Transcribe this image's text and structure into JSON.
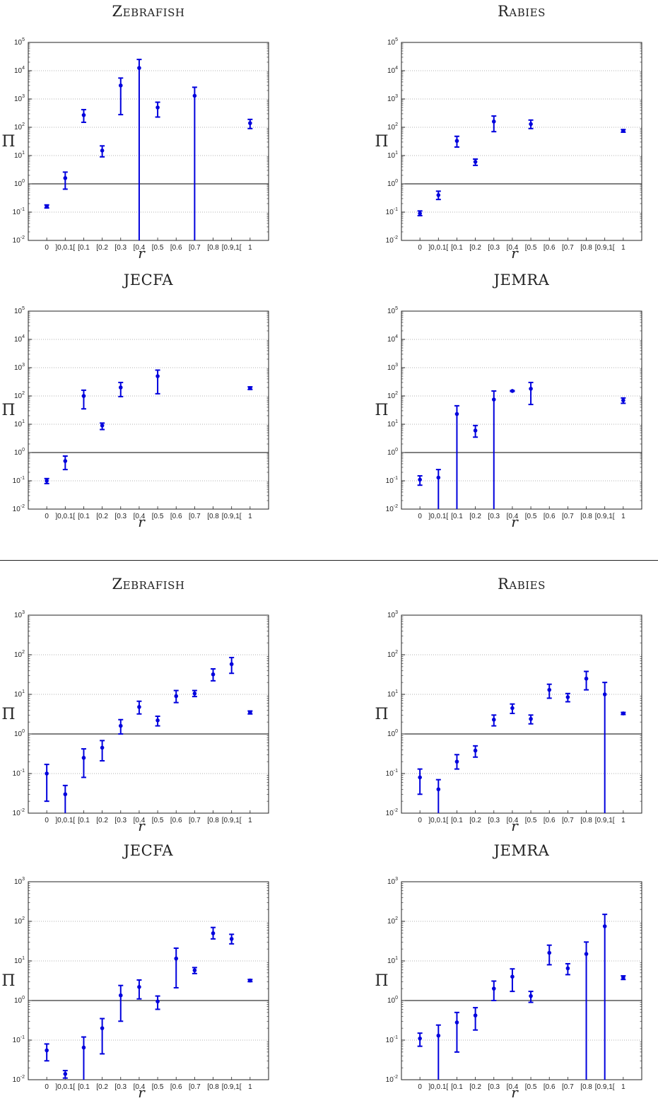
{
  "charts": {
    "top": {
      "ylim_exp": [
        -2,
        5
      ],
      "panels": [
        {
          "title": "Zebrafish",
          "smallcaps": true,
          "ylabel": "Π",
          "xlabel": "r",
          "categories": [
            "0",
            "]0,0.1[",
            "[0.1",
            "[0.2",
            "[0.3",
            "[0.4",
            "[0.5",
            "[0.6",
            "[0.7",
            "[0.8",
            "[0.9,1[",
            "1"
          ],
          "points": [
            {
              "i": 0,
              "y": 0.16,
              "lo": 0.14,
              "hi": 0.18
            },
            {
              "i": 1,
              "y": 1.6,
              "lo": 0.65,
              "hi": 2.6
            },
            {
              "i": 2,
              "y": 270,
              "lo": 150,
              "hi": 420
            },
            {
              "i": 3,
              "y": 15,
              "lo": 9,
              "hi": 22
            },
            {
              "i": 4,
              "y": 3000,
              "lo": 280,
              "hi": 5500
            },
            {
              "i": 5,
              "y": 12500,
              "lo": 0.01,
              "hi": 25000
            },
            {
              "i": 6,
              "y": 500,
              "lo": 230,
              "hi": 770
            },
            {
              "i": 8,
              "y": 1300,
              "lo": 0.01,
              "hi": 2600
            },
            {
              "i": 11,
              "y": 140,
              "lo": 90,
              "hi": 190
            }
          ]
        },
        {
          "title": "Rabies",
          "smallcaps": true,
          "ylabel": "Π",
          "xlabel": "r",
          "categories": [
            "0",
            "]0,0.1[",
            "[0.1",
            "[0.2",
            "[0.3",
            "[0.4",
            "[0.5",
            "[0.6",
            "[0.7",
            "[0.8",
            "[0.9,1[",
            "1"
          ],
          "points": [
            {
              "i": 0,
              "y": 0.09,
              "lo": 0.075,
              "hi": 0.11
            },
            {
              "i": 1,
              "y": 0.4,
              "lo": 0.28,
              "hi": 0.55
            },
            {
              "i": 2,
              "y": 33,
              "lo": 20,
              "hi": 48
            },
            {
              "i": 3,
              "y": 6,
              "lo": 4.5,
              "hi": 7.5
            },
            {
              "i": 4,
              "y": 160,
              "lo": 70,
              "hi": 250
            },
            {
              "i": 6,
              "y": 130,
              "lo": 90,
              "hi": 180
            },
            {
              "i": 11,
              "y": 75,
              "lo": 67,
              "hi": 83
            }
          ]
        },
        {
          "title": "JECFA",
          "smallcaps": false,
          "ylabel": "Π",
          "xlabel": "r",
          "categories": [
            "0",
            "]0,0.1[",
            "[0.1",
            "[0.2",
            "[0.3",
            "[0.4",
            "[0.5",
            "[0.6",
            "[0.7",
            "[0.8",
            "[0.9,1[",
            "1"
          ],
          "points": [
            {
              "i": 0,
              "y": 0.1,
              "lo": 0.08,
              "hi": 0.12
            },
            {
              "i": 1,
              "y": 0.5,
              "lo": 0.25,
              "hi": 0.75
            },
            {
              "i": 2,
              "y": 100,
              "lo": 35,
              "hi": 160
            },
            {
              "i": 3,
              "y": 9,
              "lo": 6.5,
              "hi": 11
            },
            {
              "i": 4,
              "y": 200,
              "lo": 95,
              "hi": 300
            },
            {
              "i": 6,
              "y": 500,
              "lo": 120,
              "hi": 820
            },
            {
              "i": 11,
              "y": 190,
              "lo": 170,
              "hi": 210
            }
          ]
        },
        {
          "title": "JEMRA",
          "smallcaps": false,
          "ylabel": "Π",
          "xlabel": "r",
          "categories": [
            "0",
            "]0,0.1[",
            "[0.1",
            "[0.2",
            "[0.3",
            "[0.4",
            "[0.5",
            "[0.6",
            "[0.7",
            "[0.8",
            "[0.9,1[",
            "1"
          ],
          "points": [
            {
              "i": 0,
              "y": 0.11,
              "lo": 0.07,
              "hi": 0.15
            },
            {
              "i": 1,
              "y": 0.13,
              "lo": 0.01,
              "hi": 0.25
            },
            {
              "i": 2,
              "y": 23,
              "lo": 0.01,
              "hi": 45
            },
            {
              "i": 3,
              "y": 6,
              "lo": 3.5,
              "hi": 9
            },
            {
              "i": 4,
              "y": 75,
              "lo": 0.01,
              "hi": 150
            },
            {
              "i": 5,
              "y": 150,
              "lo": 145,
              "hi": 155
            },
            {
              "i": 6,
              "y": 180,
              "lo": 50,
              "hi": 300
            },
            {
              "i": 11,
              "y": 70,
              "lo": 55,
              "hi": 85
            }
          ]
        }
      ]
    },
    "bottom": {
      "ylim_exp": [
        -2,
        3
      ],
      "panels": [
        {
          "title": "Zebrafish",
          "smallcaps": true,
          "ylabel": "Π",
          "xlabel": "r",
          "categories": [
            "0",
            "]0,0.1[",
            "[0.1",
            "[0.2",
            "[0.3",
            "[0.4",
            "[0.5",
            "[0.6",
            "[0.7",
            "[0.8",
            "[0.9,1[",
            "1"
          ],
          "points": [
            {
              "i": 0,
              "y": 0.1,
              "lo": 0.02,
              "hi": 0.17
            },
            {
              "i": 1,
              "y": 0.03,
              "lo": 0.01,
              "hi": 0.05
            },
            {
              "i": 2,
              "y": 0.25,
              "lo": 0.08,
              "hi": 0.42
            },
            {
              "i": 3,
              "y": 0.45,
              "lo": 0.21,
              "hi": 0.68
            },
            {
              "i": 4,
              "y": 1.6,
              "lo": 1.0,
              "hi": 2.3
            },
            {
              "i": 5,
              "y": 4.8,
              "lo": 3.2,
              "hi": 6.7
            },
            {
              "i": 6,
              "y": 2.2,
              "lo": 1.6,
              "hi": 2.8
            },
            {
              "i": 7,
              "y": 9,
              "lo": 6.2,
              "hi": 12.5
            },
            {
              "i": 8,
              "y": 10.5,
              "lo": 8.8,
              "hi": 12.5
            },
            {
              "i": 9,
              "y": 32,
              "lo": 22,
              "hi": 44
            },
            {
              "i": 10,
              "y": 58,
              "lo": 34,
              "hi": 85
            },
            {
              "i": 11,
              "y": 3.5,
              "lo": 3.2,
              "hi": 3.8
            }
          ]
        },
        {
          "title": "Rabies",
          "smallcaps": true,
          "ylabel": "Π",
          "xlabel": "r",
          "categories": [
            "0",
            "]0,0.1[",
            "[0.1",
            "[0.2",
            "[0.3",
            "[0.4",
            "[0.5",
            "[0.6",
            "[0.7",
            "[0.8",
            "[0.9,1[",
            "1"
          ],
          "points": [
            {
              "i": 0,
              "y": 0.08,
              "lo": 0.03,
              "hi": 0.13
            },
            {
              "i": 1,
              "y": 0.04,
              "lo": 0.01,
              "hi": 0.07
            },
            {
              "i": 2,
              "y": 0.2,
              "lo": 0.13,
              "hi": 0.3
            },
            {
              "i": 3,
              "y": 0.38,
              "lo": 0.26,
              "hi": 0.5
            },
            {
              "i": 4,
              "y": 2.3,
              "lo": 1.6,
              "hi": 3.0
            },
            {
              "i": 5,
              "y": 4.5,
              "lo": 3.3,
              "hi": 5.7
            },
            {
              "i": 6,
              "y": 2.4,
              "lo": 1.8,
              "hi": 3.0
            },
            {
              "i": 7,
              "y": 13,
              "lo": 8,
              "hi": 18
            },
            {
              "i": 8,
              "y": 8.5,
              "lo": 6.5,
              "hi": 10.5
            },
            {
              "i": 9,
              "y": 25,
              "lo": 13,
              "hi": 38
            },
            {
              "i": 10,
              "y": 10,
              "lo": 0.01,
              "hi": 20
            },
            {
              "i": 11,
              "y": 3.3,
              "lo": 3.1,
              "hi": 3.5
            }
          ]
        },
        {
          "title": "JECFA",
          "smallcaps": false,
          "ylabel": "Π",
          "xlabel": "r",
          "categories": [
            "0",
            "]0,0.1[",
            "[0.1",
            "[0.2",
            "[0.3",
            "[0.4",
            "[0.5",
            "[0.6",
            "[0.7",
            "[0.8",
            "[0.9,1[",
            "1"
          ],
          "points": [
            {
              "i": 0,
              "y": 0.055,
              "lo": 0.03,
              "hi": 0.08
            },
            {
              "i": 1,
              "y": 0.014,
              "lo": 0.011,
              "hi": 0.017
            },
            {
              "i": 2,
              "y": 0.065,
              "lo": 0.01,
              "hi": 0.12
            },
            {
              "i": 3,
              "y": 0.2,
              "lo": 0.045,
              "hi": 0.35
            },
            {
              "i": 4,
              "y": 1.35,
              "lo": 0.3,
              "hi": 2.4
            },
            {
              "i": 5,
              "y": 2.2,
              "lo": 1.1,
              "hi": 3.3
            },
            {
              "i": 6,
              "y": 0.95,
              "lo": 0.6,
              "hi": 1.3
            },
            {
              "i": 7,
              "y": 11.5,
              "lo": 2.1,
              "hi": 21
            },
            {
              "i": 8,
              "y": 5.8,
              "lo": 4.8,
              "hi": 6.8
            },
            {
              "i": 9,
              "y": 50,
              "lo": 36,
              "hi": 70
            },
            {
              "i": 10,
              "y": 36,
              "lo": 27,
              "hi": 47
            },
            {
              "i": 11,
              "y": 3.2,
              "lo": 3.0,
              "hi": 3.4
            }
          ]
        },
        {
          "title": "JEMRA",
          "smallcaps": false,
          "ylabel": "Π",
          "xlabel": "r",
          "categories": [
            "0",
            "]0,0.1[",
            "[0.1",
            "[0.2",
            "[0.3",
            "[0.4",
            "[0.5",
            "[0.6",
            "[0.7",
            "[0.8",
            "[0.9,1[",
            "1"
          ],
          "points": [
            {
              "i": 0,
              "y": 0.11,
              "lo": 0.07,
              "hi": 0.15
            },
            {
              "i": 1,
              "y": 0.13,
              "lo": 0.01,
              "hi": 0.24
            },
            {
              "i": 2,
              "y": 0.28,
              "lo": 0.05,
              "hi": 0.5
            },
            {
              "i": 3,
              "y": 0.42,
              "lo": 0.18,
              "hi": 0.66
            },
            {
              "i": 4,
              "y": 2.0,
              "lo": 1.0,
              "hi": 3.1
            },
            {
              "i": 5,
              "y": 4.0,
              "lo": 1.7,
              "hi": 6.3
            },
            {
              "i": 6,
              "y": 1.3,
              "lo": 0.9,
              "hi": 1.7
            },
            {
              "i": 7,
              "y": 16,
              "lo": 8,
              "hi": 25
            },
            {
              "i": 8,
              "y": 6.5,
              "lo": 4.5,
              "hi": 8.5
            },
            {
              "i": 9,
              "y": 15,
              "lo": 0.01,
              "hi": 30
            },
            {
              "i": 10,
              "y": 75,
              "lo": 0.01,
              "hi": 150
            },
            {
              "i": 11,
              "y": 3.8,
              "lo": 3.4,
              "hi": 4.2
            }
          ]
        }
      ]
    }
  },
  "colors": {
    "marker": "#0000dd",
    "reference_line": "#000000",
    "grid": "#b0b0b0"
  },
  "reference_value": 1
}
